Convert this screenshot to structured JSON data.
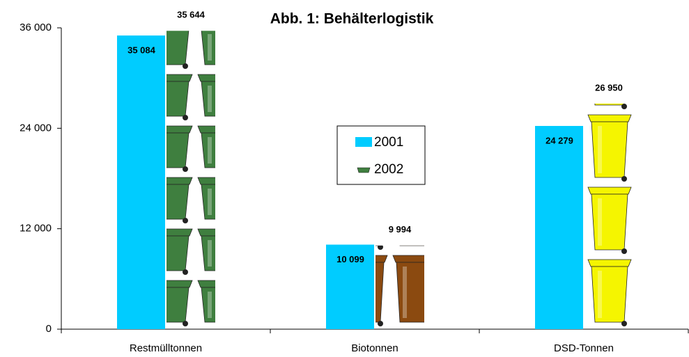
{
  "chart_data": {
    "type": "bar",
    "title": "Abb. 1: Behälterlogistik",
    "categories": [
      "Restmülltonnen",
      "Biotonnen",
      "DSD-Tonnen"
    ],
    "series": [
      {
        "name": "2001",
        "color": "#00ccff",
        "values": [
          35084,
          10099,
          24279
        ],
        "value_labels": [
          "35 084",
          "10 099",
          "24 279"
        ]
      },
      {
        "name": "2002",
        "colors": [
          "#3f7f3f",
          "#8b4a10",
          "#f5f500"
        ],
        "values": [
          35644,
          9994,
          26950
        ],
        "value_labels": [
          "35 644",
          "9 994",
          "26 950"
        ]
      }
    ],
    "ylim": [
      0,
      36000
    ],
    "yticks": [
      {
        "value": 0,
        "label": "0"
      },
      {
        "value": 12000,
        "label": "12 000"
      },
      {
        "value": 24000,
        "label": "24 000"
      },
      {
        "value": 36000,
        "label": "36 000"
      }
    ],
    "legend": "center"
  }
}
